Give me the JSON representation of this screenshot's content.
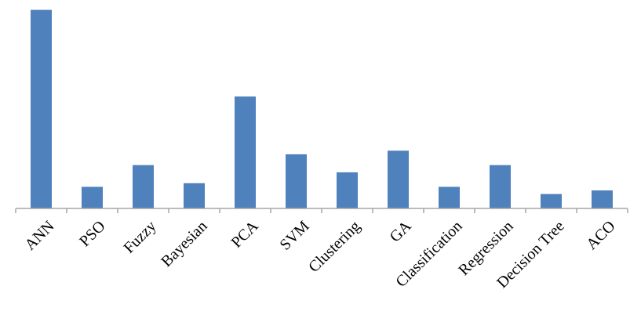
{
  "chart_data": {
    "type": "bar",
    "categories": [
      "ANN",
      "PSO",
      "Fuzzy",
      "Bayesian",
      "PCA",
      "SVM",
      "Clustering",
      "GA",
      "Classification",
      "Regression",
      "Decision Tree",
      "ACO"
    ],
    "values": [
      55,
      6,
      12,
      7,
      31,
      15,
      10,
      16,
      6,
      12,
      4,
      5
    ],
    "ylim": [
      0,
      56
    ],
    "grid": false,
    "legend": "none",
    "bar_color": "#4f81bd",
    "axis_color": "#a6a6a6"
  }
}
